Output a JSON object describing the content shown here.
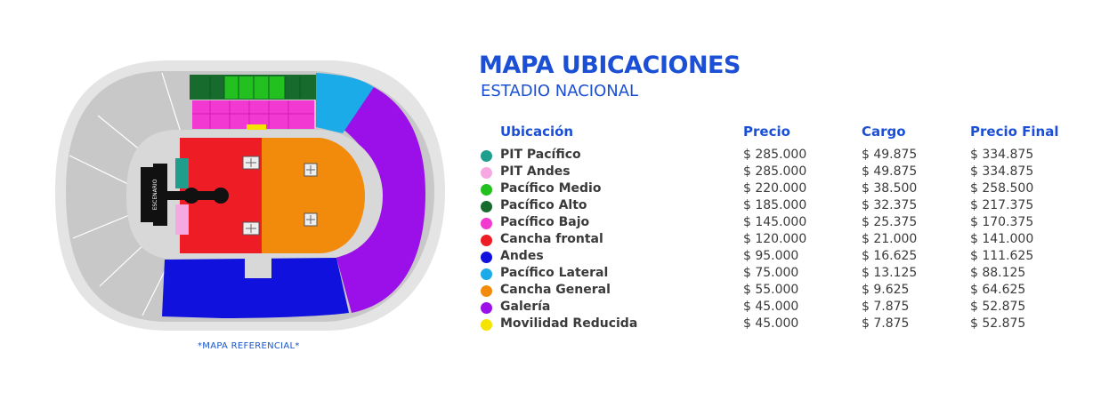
{
  "title": "MAPA UBICACIONES",
  "subtitle": "ESTADIO NACIONAL",
  "caption": "*MAPA REFERENCIAL*",
  "stage_label": "ESCENARIO",
  "table": {
    "headers": {
      "location": "Ubicación",
      "price": "Precio",
      "fee": "Cargo",
      "final": "Precio Final"
    },
    "rows": [
      {
        "name": "PIT Pacífico",
        "color": "#1f9e8e",
        "price": "$ 285.000",
        "fee": "$ 49.875",
        "final": "$ 334.875"
      },
      {
        "name": "PIT Andes",
        "color": "#f5a9e0",
        "price": "$ 285.000",
        "fee": "$ 49.875",
        "final": "$ 334.875"
      },
      {
        "name": "Pacífico Medio",
        "color": "#22c11f",
        "price": "$ 220.000",
        "fee": "$ 38.500",
        "final": "$ 258.500"
      },
      {
        "name": "Pacífico Alto",
        "color": "#176b2c",
        "price": "$ 185.000",
        "fee": "$ 32.375",
        "final": "$ 217.375"
      },
      {
        "name": "Pacífico Bajo",
        "color": "#f23ad3",
        "price": "$ 145.000",
        "fee": "$ 25.375",
        "final": "$ 170.375"
      },
      {
        "name": "Cancha frontal",
        "color": "#ee1c24",
        "price": "$ 120.000",
        "fee": "$ 21.000",
        "final": "$ 141.000"
      },
      {
        "name": "Andes",
        "color": "#1111dd",
        "price": "$ 95.000",
        "fee": "$ 16.625",
        "final": "$ 111.625"
      },
      {
        "name": "Pacífico Lateral",
        "color": "#1aabe8",
        "price": "$ 75.000",
        "fee": "$ 13.125",
        "final": "$ 88.125"
      },
      {
        "name": "Cancha General",
        "color": "#f28b0c",
        "price": "$ 55.000",
        "fee": "$ 9.625",
        "final": "$ 64.625"
      },
      {
        "name": "Galería",
        "color": "#9b10e8",
        "price": "$ 45.000",
        "fee": "$ 7.875",
        "final": "$ 52.875"
      },
      {
        "name": "Movilidad Reducida",
        "color": "#f5e400",
        "price": "$ 45.000",
        "fee": "$ 7.875",
        "final": "$ 52.875"
      }
    ]
  },
  "colors": {
    "heading": "#1a4fd6",
    "stadium_outer": "#e4e4e4",
    "stadium_gray": "#c8c8c8",
    "stage": "#111111"
  }
}
